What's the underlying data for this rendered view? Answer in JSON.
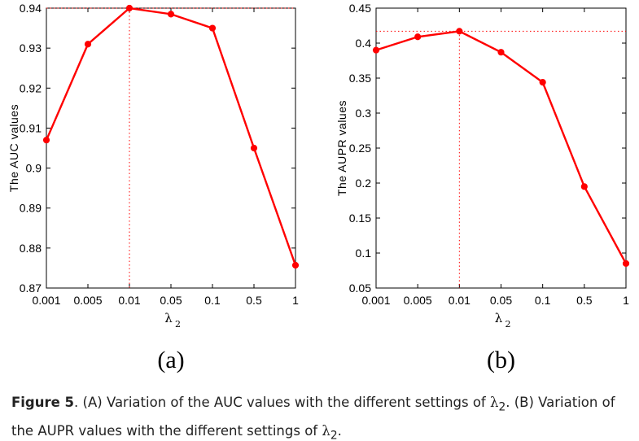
{
  "chart_data": [
    {
      "type": "line",
      "panel_label": "(a)",
      "categories": [
        "0.001",
        "0.005",
        "0.01",
        "0.05",
        "0.1",
        "0.5",
        "1"
      ],
      "values": [
        0.907,
        0.931,
        0.94,
        0.9385,
        0.935,
        0.905,
        0.8757
      ],
      "xlabel_symbol": "λ",
      "xlabel_subscript": "2",
      "ylabel": "The AUC values",
      "ylim": [
        0.87,
        0.94
      ],
      "yticks": [
        "0.87",
        "0.88",
        "0.89",
        "0.9",
        "0.91",
        "0.92",
        "0.93",
        "0.94"
      ],
      "ytick_values": [
        0.87,
        0.88,
        0.89,
        0.9,
        0.91,
        0.92,
        0.93,
        0.94
      ],
      "peak_category_index": 2,
      "peak_value": 0.94,
      "series_color": "#ff0000",
      "reference_line_color": "#ff0000",
      "grid": false
    },
    {
      "type": "line",
      "panel_label": "(b)",
      "categories": [
        "0.001",
        "0.005",
        "0.01",
        "0.05",
        "0.1",
        "0.5",
        "1"
      ],
      "values": [
        0.39,
        0.409,
        0.417,
        0.387,
        0.344,
        0.195,
        0.085
      ],
      "xlabel_symbol": "λ",
      "xlabel_subscript": "2",
      "ylabel": "The AUPR values",
      "ylim": [
        0.05,
        0.45
      ],
      "yticks": [
        "0.05",
        "0.1",
        "0.15",
        "0.2",
        "0.25",
        "0.3",
        "0.35",
        "0.4",
        "0.45"
      ],
      "ytick_values": [
        0.05,
        0.1,
        0.15,
        0.2,
        0.25,
        0.3,
        0.35,
        0.4,
        0.45
      ],
      "peak_category_index": 2,
      "peak_value": 0.417,
      "series_color": "#ff0000",
      "reference_line_color": "#ff0000",
      "grid": false
    }
  ],
  "caption": {
    "label": "Figure 5",
    "text_a": ".  (A) Variation of the AUC values with the different settings of ",
    "lambda": "λ",
    "sub": "2",
    "text_b": ". (B) Variation of the AUPR values with the different settings of ",
    "text_end": "."
  }
}
